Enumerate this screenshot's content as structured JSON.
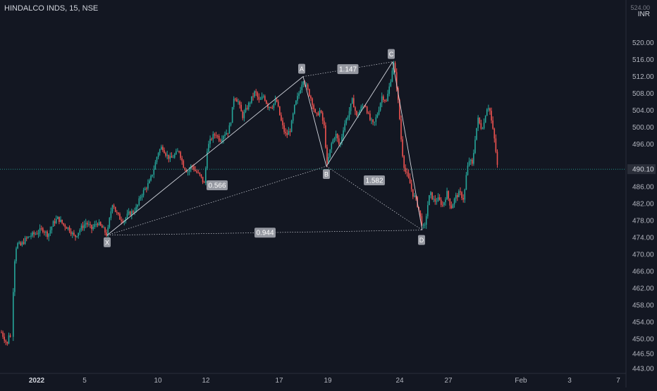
{
  "header": {
    "symbol_title": "HINDALCO INDS, 15, NSE",
    "currency_top": "524.00",
    "currency": "INR"
  },
  "price_axis": {
    "ticks": [
      "520.00",
      "516.00",
      "512.00",
      "508.00",
      "504.00",
      "500.00",
      "496.00",
      "490.10",
      "486.00",
      "482.00",
      "478.00",
      "474.00",
      "470.00",
      "466.00",
      "462.00",
      "458.00",
      "454.00",
      "450.00",
      "446.50",
      "443.00"
    ],
    "current_price": "490.10"
  },
  "time_axis": {
    "labels": [
      "2022",
      "5",
      "10",
      "12",
      "17",
      "19",
      "24",
      "27",
      "Feb",
      "3",
      "7"
    ]
  },
  "colors": {
    "background": "#131722",
    "up": "#26a69a",
    "down": "#ef5350",
    "pattern_line": "#d1d4dc",
    "current_price_badge": "#2a2e39",
    "label_bg": "#9598a1"
  },
  "chart_data": {
    "type": "candlestick",
    "symbol": "HINDALCO INDS",
    "interval": "15",
    "exchange": "NSE",
    "y_range": [
      443,
      524
    ],
    "current_price": 490.1,
    "harmonic_points": [
      {
        "label": "X",
        "price": 474.5
      },
      {
        "label": "A",
        "price": 512.0
      },
      {
        "label": "B",
        "price": 490.8
      },
      {
        "label": "C",
        "price": 515.5
      },
      {
        "label": "D",
        "price": 475.7
      }
    ],
    "ratios": [
      {
        "label": "1.147",
        "between": [
          "A",
          "C"
        ]
      },
      {
        "label": "0.566",
        "between": [
          "X",
          "B"
        ]
      },
      {
        "label": "1.582",
        "between": [
          "B",
          "D"
        ]
      },
      {
        "label": "0.944",
        "between": [
          "X",
          "D"
        ]
      }
    ],
    "price_path": [
      {
        "t": 0,
        "p": 451.5
      },
      {
        "t": 3,
        "p": 450.5
      },
      {
        "t": 6,
        "p": 449.5
      },
      {
        "t": 9,
        "p": 448.5
      },
      {
        "t": 11,
        "p": 452.0
      },
      {
        "t": 13,
        "p": 450.0
      },
      {
        "t": 16,
        "p": 458.0
      },
      {
        "t": 18,
        "p": 467.0
      },
      {
        "t": 20,
        "p": 471.0
      },
      {
        "t": 22,
        "p": 472.5
      },
      {
        "t": 27,
        "p": 472.0
      },
      {
        "t": 34,
        "p": 473.5
      },
      {
        "t": 42,
        "p": 474.5
      },
      {
        "t": 50,
        "p": 475.0
      },
      {
        "t": 58,
        "p": 476.0
      },
      {
        "t": 66,
        "p": 474.5
      },
      {
        "t": 74,
        "p": 477.5
      },
      {
        "t": 80,
        "p": 478.5
      },
      {
        "t": 88,
        "p": 477.0
      },
      {
        "t": 96,
        "p": 476.0
      },
      {
        "t": 104,
        "p": 474.0
      },
      {
        "t": 112,
        "p": 476.0
      },
      {
        "t": 120,
        "p": 477.5
      },
      {
        "t": 128,
        "p": 476.0
      },
      {
        "t": 136,
        "p": 477.5
      },
      {
        "t": 144,
        "p": 476.0
      },
      {
        "t": 150,
        "p": 474.5
      },
      {
        "t": 154,
        "p": 479.0
      },
      {
        "t": 158,
        "p": 482.5
      },
      {
        "t": 162,
        "p": 480.0
      },
      {
        "t": 168,
        "p": 478.5
      },
      {
        "t": 174,
        "p": 478.0
      },
      {
        "t": 180,
        "p": 479.5
      },
      {
        "t": 186,
        "p": 480.0
      },
      {
        "t": 192,
        "p": 481.0
      },
      {
        "t": 198,
        "p": 484.0
      },
      {
        "t": 204,
        "p": 485.5
      },
      {
        "t": 210,
        "p": 487.0
      },
      {
        "t": 216,
        "p": 490.0
      },
      {
        "t": 222,
        "p": 494.0
      },
      {
        "t": 228,
        "p": 495.5
      },
      {
        "t": 234,
        "p": 493.5
      },
      {
        "t": 240,
        "p": 492.5
      },
      {
        "t": 246,
        "p": 493.5
      },
      {
        "t": 252,
        "p": 494.5
      },
      {
        "t": 258,
        "p": 491.0
      },
      {
        "t": 264,
        "p": 489.5
      },
      {
        "t": 270,
        "p": 491.0
      },
      {
        "t": 276,
        "p": 489.5
      },
      {
        "t": 282,
        "p": 488.5
      },
      {
        "t": 288,
        "p": 486.5
      },
      {
        "t": 292,
        "p": 495.0
      },
      {
        "t": 298,
        "p": 497.5
      },
      {
        "t": 304,
        "p": 498.5
      },
      {
        "t": 310,
        "p": 497.0
      },
      {
        "t": 316,
        "p": 498.5
      },
      {
        "t": 322,
        "p": 499.0
      },
      {
        "t": 326,
        "p": 502.0
      },
      {
        "t": 330,
        "p": 507.5
      },
      {
        "t": 336,
        "p": 506.0
      },
      {
        "t": 342,
        "p": 502.5
      },
      {
        "t": 348,
        "p": 504.5
      },
      {
        "t": 354,
        "p": 506.5
      },
      {
        "t": 360,
        "p": 508.5
      },
      {
        "t": 366,
        "p": 506.0
      },
      {
        "t": 372,
        "p": 507.5
      },
      {
        "t": 378,
        "p": 505.0
      },
      {
        "t": 384,
        "p": 505.0
      },
      {
        "t": 390,
        "p": 506.5
      },
      {
        "t": 396,
        "p": 502.0
      },
      {
        "t": 400,
        "p": 499.5
      },
      {
        "t": 404,
        "p": 498.0
      },
      {
        "t": 410,
        "p": 499.5
      },
      {
        "t": 416,
        "p": 505.0
      },
      {
        "t": 422,
        "p": 508.0
      },
      {
        "t": 428,
        "p": 511.5
      },
      {
        "t": 434,
        "p": 509.0
      },
      {
        "t": 440,
        "p": 506.5
      },
      {
        "t": 446,
        "p": 502.5
      },
      {
        "t": 452,
        "p": 504.0
      },
      {
        "t": 458,
        "p": 500.0
      },
      {
        "t": 462,
        "p": 491.0
      },
      {
        "t": 468,
        "p": 496.0
      },
      {
        "t": 474,
        "p": 498.5
      },
      {
        "t": 480,
        "p": 495.5
      },
      {
        "t": 486,
        "p": 500.5
      },
      {
        "t": 492,
        "p": 503.0
      },
      {
        "t": 498,
        "p": 506.5
      },
      {
        "t": 504,
        "p": 502.5
      },
      {
        "t": 510,
        "p": 504.5
      },
      {
        "t": 516,
        "p": 505.5
      },
      {
        "t": 522,
        "p": 502.0
      },
      {
        "t": 528,
        "p": 500.5
      },
      {
        "t": 534,
        "p": 503.5
      },
      {
        "t": 540,
        "p": 507.5
      },
      {
        "t": 546,
        "p": 506.0
      },
      {
        "t": 552,
        "p": 511.0
      },
      {
        "t": 556,
        "p": 515.5
      },
      {
        "t": 560,
        "p": 511.0
      },
      {
        "t": 564,
        "p": 504.0
      },
      {
        "t": 568,
        "p": 495.0
      },
      {
        "t": 572,
        "p": 490.0
      },
      {
        "t": 576,
        "p": 488.5
      },
      {
        "t": 580,
        "p": 486.5
      },
      {
        "t": 584,
        "p": 484.0
      },
      {
        "t": 588,
        "p": 483.0
      },
      {
        "t": 592,
        "p": 480.5
      },
      {
        "t": 596,
        "p": 477.5
      },
      {
        "t": 600,
        "p": 475.7
      },
      {
        "t": 604,
        "p": 481.0
      },
      {
        "t": 608,
        "p": 484.5
      },
      {
        "t": 614,
        "p": 482.5
      },
      {
        "t": 620,
        "p": 483.0
      },
      {
        "t": 626,
        "p": 481.5
      },
      {
        "t": 632,
        "p": 484.5
      },
      {
        "t": 638,
        "p": 481.0
      },
      {
        "t": 644,
        "p": 483.5
      },
      {
        "t": 650,
        "p": 484.5
      },
      {
        "t": 656,
        "p": 483.0
      },
      {
        "t": 660,
        "p": 489.5
      },
      {
        "t": 664,
        "p": 492.5
      },
      {
        "t": 668,
        "p": 491.0
      },
      {
        "t": 672,
        "p": 497.5
      },
      {
        "t": 676,
        "p": 502.0
      },
      {
        "t": 680,
        "p": 500.0
      },
      {
        "t": 684,
        "p": 500.5
      },
      {
        "t": 688,
        "p": 504.5
      },
      {
        "t": 692,
        "p": 505.0
      },
      {
        "t": 696,
        "p": 500.5
      },
      {
        "t": 700,
        "p": 496.5
      },
      {
        "t": 704,
        "p": 490.1
      }
    ]
  }
}
